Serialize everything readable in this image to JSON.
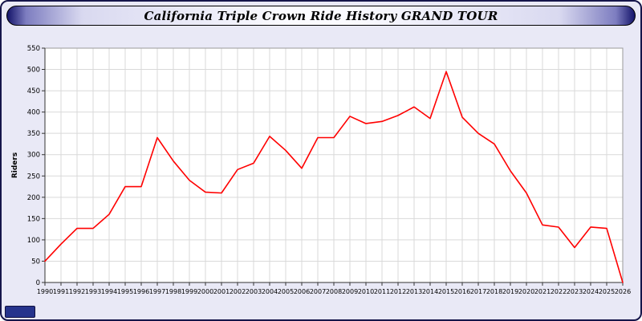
{
  "page": {
    "title": "California Triple Crown Ride History GRAND TOUR"
  },
  "chart_data": {
    "type": "line",
    "title": "California Triple Crown Ride History GRAND TOUR",
    "xlabel": "",
    "ylabel": "Riders",
    "ylim": [
      0,
      550
    ],
    "ytick_step": 50,
    "grid": true,
    "legend_position": "none",
    "line_color": "#ff0000",
    "x": [
      1990,
      1991,
      1992,
      1993,
      1994,
      1995,
      1996,
      1997,
      1998,
      1999,
      2000,
      2001,
      2002,
      2003,
      2004,
      2005,
      2006,
      2007,
      2008,
      2009,
      2010,
      2011,
      2012,
      2013,
      2014,
      2015,
      2016,
      2017,
      2018,
      2019,
      2020,
      2021,
      2022,
      2023,
      2024,
      2025,
      2026
    ],
    "series": [
      {
        "name": "Riders",
        "color": "#ff0000",
        "values": [
          50,
          90,
          127,
          127,
          160,
          225,
          225,
          340,
          285,
          240,
          212,
          210,
          265,
          280,
          343,
          310,
          268,
          340,
          340,
          390,
          373,
          378,
          392,
          412,
          385,
          495,
          388,
          350,
          325,
          262,
          210,
          135,
          130,
          82,
          130,
          127,
          0
        ]
      }
    ]
  },
  "colors": {
    "page_background": "#e9e9f6",
    "plot_background": "#ffffff",
    "gridline": "#d9d9d9",
    "axis": "#333333",
    "series": "#ff0000",
    "title_bar_edge": "#14146a"
  }
}
